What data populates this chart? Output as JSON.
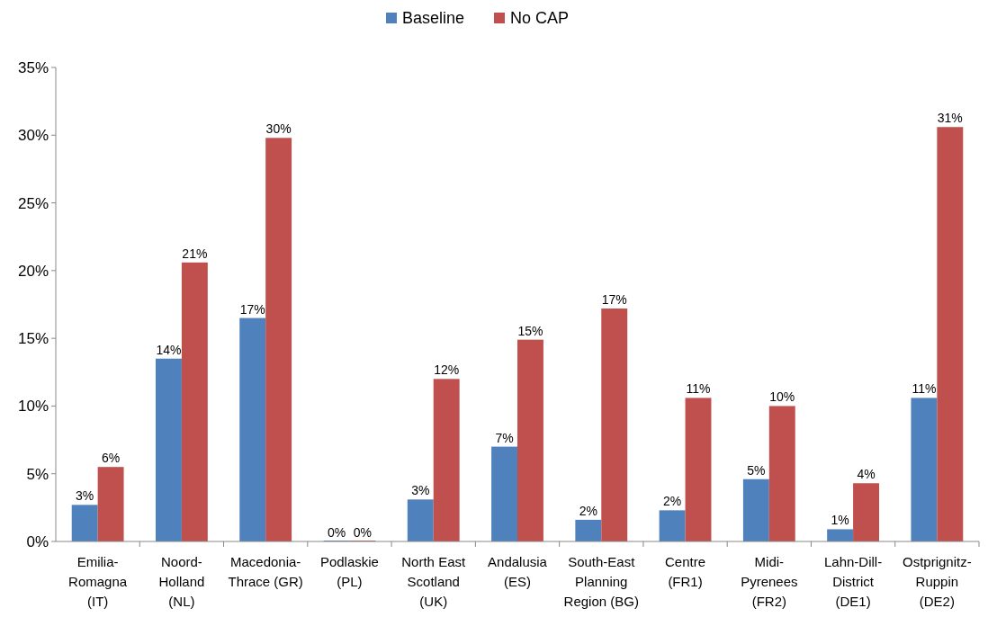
{
  "chart_data": {
    "type": "bar",
    "categories": [
      "Emilia-\nRomagna\n(IT)",
      "Noord-\nHolland\n(NL)",
      "Macedonia-\nThrace (GR)",
      "Podlaskie\n(PL)",
      "North East\nScotland\n(UK)",
      "Andalusia\n(ES)",
      "South-East\nPlanning\nRegion (BG)",
      "Centre\n(FR1)",
      "Midi-\nPyrenees\n(FR2)",
      "Lahn-Dill-\nDistrict\n(DE1)",
      "Ostprignitz-\nRuppin\n(DE2)"
    ],
    "series": [
      {
        "name": "Baseline",
        "color": "#4f81bd",
        "values": [
          2.7,
          13.5,
          16.5,
          0,
          3.1,
          7.0,
          1.6,
          2.3,
          4.6,
          0.9,
          10.6
        ],
        "value_labels": [
          "3%",
          "14%",
          "17%",
          "0%",
          "3%",
          "7%",
          "2%",
          "2%",
          "5%",
          "1%",
          "11%"
        ]
      },
      {
        "name": "No CAP",
        "color": "#c0504d",
        "values": [
          5.5,
          20.6,
          29.8,
          0,
          12.0,
          14.9,
          17.2,
          10.6,
          10.0,
          4.3,
          30.6
        ],
        "value_labels": [
          "6%",
          "21%",
          "30%",
          "0%",
          "12%",
          "15%",
          "17%",
          "11%",
          "10%",
          "4%",
          "31%"
        ]
      }
    ],
    "ylim": [
      0,
      35
    ],
    "yticks": [
      {
        "value": 0,
        "label": "0%"
      },
      {
        "value": 5,
        "label": "5%"
      },
      {
        "value": 10,
        "label": "10%"
      },
      {
        "value": 15,
        "label": "15%"
      },
      {
        "value": 20,
        "label": "20%"
      },
      {
        "value": 25,
        "label": "25%"
      },
      {
        "value": 30,
        "label": "30%"
      },
      {
        "value": 35,
        "label": "35%"
      }
    ],
    "legend": "top"
  }
}
